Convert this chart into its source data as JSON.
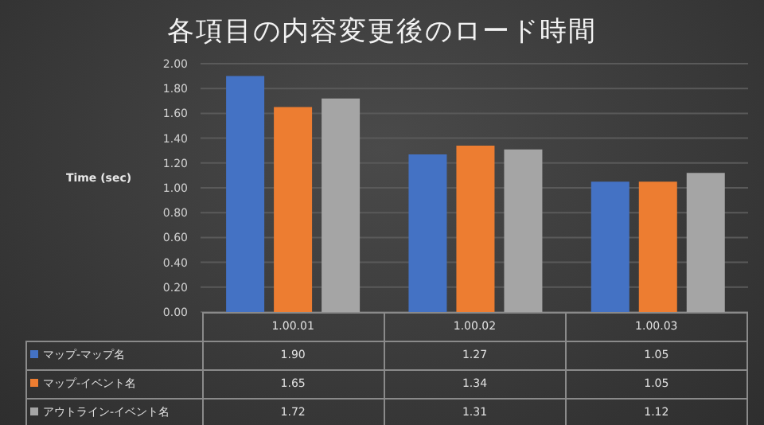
{
  "chart_data": {
    "type": "bar",
    "title": "各項目の内容変更後のロード時間",
    "ylabel": "Time (sec)",
    "categories": [
      "1.00.01",
      "1.00.02",
      "1.00.03"
    ],
    "series": [
      {
        "name": "マップ-マップ名",
        "color": "#4472c4",
        "values": [
          1.9,
          1.27,
          1.05
        ],
        "value_labels": [
          "1.90",
          "1.27",
          "1.05"
        ]
      },
      {
        "name": "マップ-イベント名",
        "color": "#ed7d31",
        "values": [
          1.65,
          1.34,
          1.05
        ],
        "value_labels": [
          "1.65",
          "1.34",
          "1.05"
        ]
      },
      {
        "name": "アウトライン-イベント名",
        "color": "#a5a5a5",
        "values": [
          1.72,
          1.31,
          1.12
        ],
        "value_labels": [
          "1.72",
          "1.31",
          "1.12"
        ]
      }
    ],
    "ylim": [
      0,
      2
    ],
    "yticks": [
      {
        "value": 0,
        "label": "0.00"
      },
      {
        "value": 0.2,
        "label": "0.20"
      },
      {
        "value": 0.4,
        "label": "0.40"
      },
      {
        "value": 0.6,
        "label": "0.60"
      },
      {
        "value": 0.8,
        "label": "0.80"
      },
      {
        "value": 1,
        "label": "1.00"
      },
      {
        "value": 1.2,
        "label": "1.20"
      },
      {
        "value": 1.4,
        "label": "1.40"
      },
      {
        "value": 1.6,
        "label": "1.60"
      },
      {
        "value": 1.8,
        "label": "1.80"
      },
      {
        "value": 2,
        "label": "2.00"
      }
    ],
    "grid": "y",
    "legend": "bottom"
  }
}
